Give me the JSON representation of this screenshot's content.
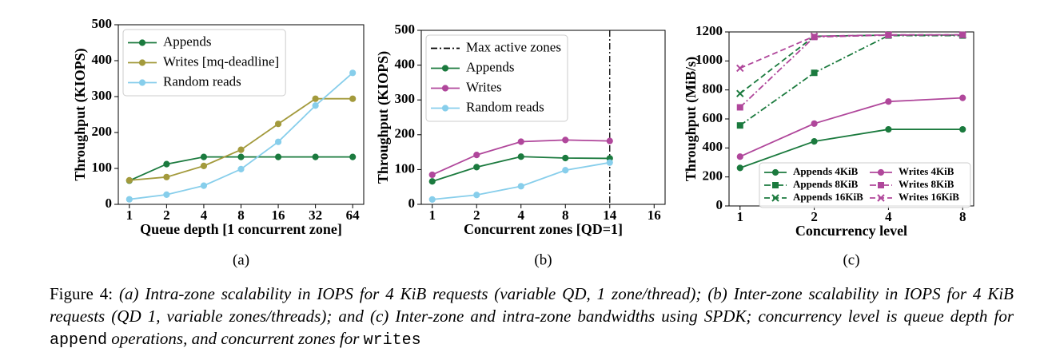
{
  "chart_data": [
    {
      "type": "line",
      "label": "(a)",
      "xlabel": "Queue depth [1 concurrent zone]",
      "ylabel": "Throughput (KIOPS)",
      "categories": [
        "1",
        "2",
        "4",
        "8",
        "16",
        "32",
        "64"
      ],
      "ylim": [
        0,
        500
      ],
      "yticks": [
        0,
        100,
        200,
        300,
        400,
        500
      ],
      "legend": "upper left",
      "legend_columns": 1,
      "series": [
        {
          "name": "Appends",
          "color": "#1b7a3e",
          "marker": "circle",
          "linestyle": "solid",
          "values": [
            66,
            112,
            132,
            132,
            132,
            132,
            132
          ]
        },
        {
          "name": "Writes [mq-deadline]",
          "color": "#a39a3c",
          "marker": "circle",
          "linestyle": "solid",
          "values": [
            67,
            76,
            107,
            152,
            224,
            294,
            294
          ]
        },
        {
          "name": "Random reads",
          "color": "#87ceeb",
          "marker": "circle",
          "linestyle": "solid",
          "values": [
            14,
            27,
            52,
            98,
            174,
            275,
            366
          ]
        }
      ]
    },
    {
      "type": "line",
      "label": "(b)",
      "xlabel": "Concurrent zones [QD=1]",
      "ylabel": "Throughput (KIOPS)",
      "categories": [
        "1",
        "2",
        "4",
        "8",
        "14",
        "16"
      ],
      "ylim": [
        0,
        500
      ],
      "yticks": [
        0,
        100,
        200,
        300,
        400,
        500
      ],
      "legend": "upper left",
      "legend_columns": 1,
      "vline": {
        "name": "Max active zones",
        "x": "14",
        "color": "#000000"
      },
      "series": [
        {
          "name": "Appends",
          "color": "#1b7a3e",
          "marker": "circle",
          "linestyle": "solid",
          "values": [
            66,
            107,
            137,
            133,
            132,
            null
          ]
        },
        {
          "name": "Writes",
          "color": "#b0479b",
          "marker": "circle",
          "linestyle": "solid",
          "values": [
            85,
            142,
            180,
            185,
            182,
            null
          ]
        },
        {
          "name": "Random reads",
          "color": "#87ceeb",
          "marker": "circle",
          "linestyle": "solid",
          "values": [
            14,
            27,
            52,
            98,
            120,
            null
          ]
        }
      ]
    },
    {
      "type": "line",
      "label": "(c)",
      "xlabel": "Concurrency level",
      "ylabel": "Throughput (MiB/s)",
      "categories": [
        "1",
        "2",
        "4",
        "8"
      ],
      "ylim": [
        0,
        1200
      ],
      "yticks": [
        0,
        200,
        400,
        600,
        800,
        1000,
        1200
      ],
      "legend": "lower right",
      "legend_columns": 2,
      "series": [
        {
          "name": "Appends 4KiB",
          "color": "#1b7a3e",
          "marker": "circle",
          "linestyle": "solid",
          "values": [
            262,
            445,
            528,
            528
          ]
        },
        {
          "name": "Appends 8KiB",
          "color": "#1b7a3e",
          "marker": "square",
          "linestyle": "dashdot",
          "values": [
            555,
            918,
            1175,
            1175
          ]
        },
        {
          "name": "Appends 16KiB",
          "color": "#1b7a3e",
          "marker": "x",
          "linestyle": "dashed",
          "values": [
            775,
            1170,
            1178,
            1178
          ]
        },
        {
          "name": "Writes 4KiB",
          "color": "#b0479b",
          "marker": "circle",
          "linestyle": "solid",
          "values": [
            340,
            568,
            720,
            745
          ]
        },
        {
          "name": "Writes 8KiB",
          "color": "#b0479b",
          "marker": "square",
          "linestyle": "dashdot",
          "values": [
            680,
            1165,
            1178,
            1180
          ]
        },
        {
          "name": "Writes 16KiB",
          "color": "#b0479b",
          "marker": "x",
          "linestyle": "dashed",
          "values": [
            950,
            1170,
            1180,
            1180
          ]
        }
      ]
    }
  ],
  "caption": {
    "prefix": "Figure 4:",
    "parts": [
      " (a) Intra-zone scalability in IOPS for 4 KiB requests (variable QD, 1 zone/thread); (b) Inter-zone scalability in IOPS for 4 KiB requests (QD 1, variable zones/threads); and (c) Inter-zone and intra-zone bandwidths using SPDK; concurrency level is queue depth for ",
      "append",
      " operations, and concurrent zones for ",
      "writes"
    ]
  }
}
